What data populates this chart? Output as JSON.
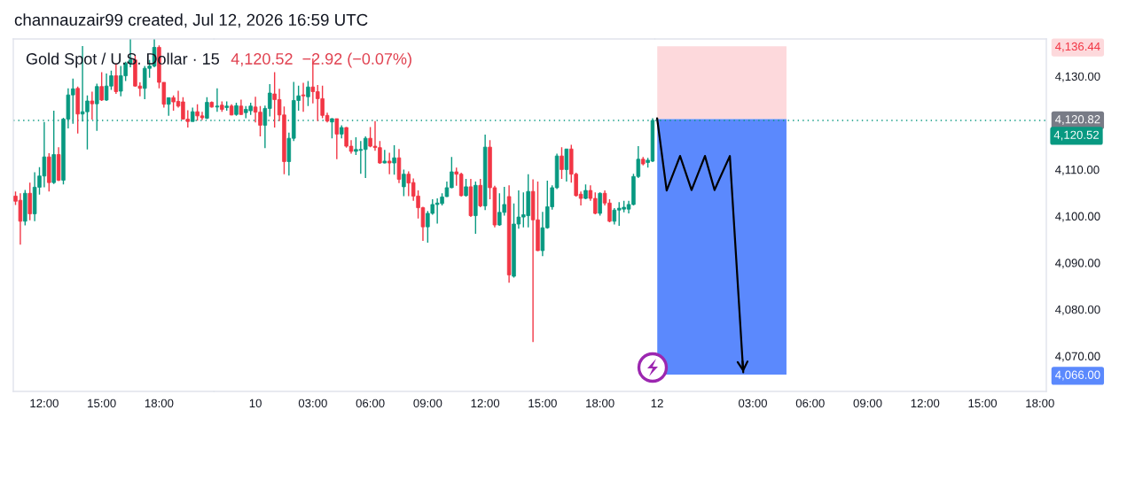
{
  "chart_data": [
    {
      "type": "candlestick",
      "title": "Gold Spot / U.S. Dollar · 15",
      "annotations": [
        "channauzair99 created, Jul 12, 2026 16:59 UTC"
      ],
      "x": [
        "2026-07-09T10:30",
        "2026-07-09T10:45",
        "2026-07-09T11:00",
        "2026-07-09T11:15",
        "2026-07-09T11:30",
        "2026-07-09T11:45",
        "2026-07-09T12:00",
        "2026-07-09T12:15",
        "2026-07-09T12:30",
        "2026-07-09T12:45",
        "2026-07-09T13:00",
        "2026-07-09T13:15",
        "2026-07-09T13:30",
        "2026-07-09T13:45",
        "2026-07-09T14:00",
        "2026-07-09T14:15",
        "2026-07-09T14:30",
        "2026-07-09T14:45",
        "2026-07-09T15:00",
        "2026-07-09T15:15",
        "2026-07-09T15:30",
        "2026-07-09T15:45",
        "2026-07-09T16:00",
        "2026-07-09T16:15",
        "2026-07-09T16:30",
        "2026-07-09T16:45",
        "2026-07-09T17:00",
        "2026-07-09T17:15",
        "2026-07-09T17:30",
        "2026-07-09T17:45",
        "2026-07-09T18:00",
        "2026-07-09T18:15",
        "2026-07-09T18:30",
        "2026-07-09T18:45",
        "2026-07-09T19:00",
        "2026-07-09T19:15",
        "2026-07-09T19:30",
        "2026-07-09T19:45",
        "2026-07-09T20:00",
        "2026-07-09T20:15",
        "2026-07-09T20:30",
        "2026-07-09T20:45"
      ],
      "ohlc": [
        [
          4104.3,
          4105.3,
          4102.4,
          4103.2
        ],
        [
          4103.4,
          4104.9,
          4093.9,
          4098.9
        ],
        [
          4098.9,
          4105.6,
          4098.0,
          4104.9
        ],
        [
          4104.9,
          4107.2,
          4099.1,
          4100.5
        ],
        [
          4100.5,
          4109.4,
          4098.9,
          4106.2
        ],
        [
          4106.2,
          4110.5,
          4104.6,
          4108.6
        ],
        [
          4108.6,
          4120.2,
          4106.2,
          4112.7
        ],
        [
          4112.7,
          4113.5,
          4105.3,
          4107.2
        ],
        [
          4107.2,
          4122.6,
          4106.9,
          4113.2
        ],
        [
          4113.2,
          4114.8,
          4107.5,
          4107.7
        ],
        [
          4107.7,
          4121.1,
          4106.8,
          4120.8
        ],
        [
          4120.8,
          4127.4,
          4118.8,
          4126.0
        ],
        [
          4126.0,
          4129.5,
          4119.8,
          4127.3
        ],
        [
          4127.4,
          4127.8,
          4117.7,
          4121.9
        ],
        [
          4121.9,
          4136.5,
          4120.3,
          4122.4
        ],
        [
          4122.4,
          4125.9,
          4114.3,
          4124.7
        ],
        [
          4124.7,
          4126.7,
          4120.7,
          4124.1
        ],
        [
          4124.1,
          4128.4,
          4118.3,
          4127.8
        ],
        [
          4127.8,
          4130.9,
          4124.7,
          4124.9
        ],
        [
          4124.9,
          4130.6,
          4124.7,
          4127.9
        ],
        [
          4127.9,
          4131.2,
          4127.1,
          4130.1
        ],
        [
          4130.1,
          4132.8,
          4126.2,
          4126.7
        ],
        [
          4126.8,
          4132.2,
          4125.7,
          4130.1
        ],
        [
          4130.1,
          4133.1,
          4129.0,
          4132.8
        ],
        [
          4132.8,
          4137.9,
          4131.9,
          4133.5
        ],
        [
          4133.5,
          4134.4,
          4127.8,
          4127.9
        ],
        [
          4127.9,
          4128.7,
          4125.7,
          4127.4
        ],
        [
          4127.4,
          4132.2,
          4125.1,
          4131.7
        ],
        [
          4131.7,
          4133.5,
          4129.7,
          4132.2
        ],
        [
          4132.2,
          4137.9,
          4131.9,
          4136.2
        ],
        [
          4136.2,
          4136.6,
          4127.4,
          4128.7
        ],
        [
          4128.7,
          4128.7,
          4123.3,
          4124.0
        ],
        [
          4124.0,
          4125.4,
          4121.5,
          4125.4
        ],
        [
          4125.4,
          4125.9,
          4122.6,
          4124.5
        ],
        [
          4124.6,
          4126.9,
          4123.3,
          4123.6
        ],
        [
          4124.5,
          4125.5,
          4120.7,
          4120.8
        ],
        [
          4120.8,
          4122.7,
          4119.0,
          4120.3
        ],
        [
          4120.3,
          4123.3,
          4120.3,
          4122.4
        ],
        [
          4122.4,
          4124.0,
          4120.5,
          4121.5
        ],
        [
          4121.5,
          4122.4,
          4120.6,
          4121.1
        ],
        [
          4121.0,
          4125.5,
          4120.8,
          4124.4
        ],
        [
          4124.4,
          4124.6,
          4123.3,
          4123.4
        ]
      ],
      "ref_lines": [
        {
          "axis": "y",
          "value": 4120.52,
          "color": "#089981",
          "line_style": "dotted"
        }
      ],
      "xlim": [
        "2026-07-09T10:23",
        "2026-07-09T20:52"
      ],
      "xticks": [
        {
          "value": "2026-07-09T12:00",
          "label": "12:00"
        },
        {
          "value": "2026-07-09T15:00",
          "label": "15:00"
        },
        {
          "value": "2026-07-09T18:00",
          "label": "18:00"
        }
      ],
      "ylim": [
        4062.4,
        4138.0
      ],
      "tick_labels": "x",
      "grid": false,
      "legend": false
    },
    {
      "type": "candlestick",
      "subtitle": "4,120.52  −2.92 (−0.07%)",
      "x": [
        "2026-07-09T22:00",
        "2026-07-09T22:15",
        "2026-07-09T22:30",
        "2026-07-09T22:45",
        "2026-07-09T23:00",
        "2026-07-09T23:15",
        "2026-07-09T23:30",
        "2026-07-09T23:45",
        "2026-07-10T00:00",
        "2026-07-10T00:15",
        "2026-07-10T00:30",
        "2026-07-10T00:45",
        "2026-07-10T01:00",
        "2026-07-10T01:15",
        "2026-07-10T01:30",
        "2026-07-10T01:45",
        "2026-07-10T02:00",
        "2026-07-10T02:15",
        "2026-07-10T02:30",
        "2026-07-10T02:45",
        "2026-07-10T03:00",
        "2026-07-10T03:15",
        "2026-07-10T03:30",
        "2026-07-10T03:45",
        "2026-07-10T04:00",
        "2026-07-10T04:15",
        "2026-07-10T04:30",
        "2026-07-10T04:45",
        "2026-07-10T05:00",
        "2026-07-10T05:15",
        "2026-07-10T05:30",
        "2026-07-10T05:45",
        "2026-07-10T06:00",
        "2026-07-10T06:15",
        "2026-07-10T06:30",
        "2026-07-10T06:45",
        "2026-07-10T07:00",
        "2026-07-10T07:15",
        "2026-07-10T07:30",
        "2026-07-10T07:45",
        "2026-07-10T08:00",
        "2026-07-10T08:15",
        "2026-07-10T08:30",
        "2026-07-10T08:45",
        "2026-07-10T09:00",
        "2026-07-10T09:15",
        "2026-07-10T09:30",
        "2026-07-10T09:45",
        "2026-07-10T10:00",
        "2026-07-10T10:15",
        "2026-07-10T10:30",
        "2026-07-10T10:45",
        "2026-07-10T11:00",
        "2026-07-10T11:15",
        "2026-07-10T11:30",
        "2026-07-10T11:45",
        "2026-07-10T12:00",
        "2026-07-10T12:15",
        "2026-07-10T12:30",
        "2026-07-10T12:45",
        "2026-07-10T13:00",
        "2026-07-10T13:15",
        "2026-07-10T13:30",
        "2026-07-10T13:45",
        "2026-07-10T14:00",
        "2026-07-10T14:15",
        "2026-07-10T14:30",
        "2026-07-10T14:45",
        "2026-07-10T15:00",
        "2026-07-10T15:15",
        "2026-07-10T15:30",
        "2026-07-10T15:45",
        "2026-07-10T16:00",
        "2026-07-10T16:15",
        "2026-07-10T16:30",
        "2026-07-10T16:45",
        "2026-07-10T17:00",
        "2026-07-10T17:15",
        "2026-07-10T17:30",
        "2026-07-10T17:45",
        "2026-07-10T18:00",
        "2026-07-10T18:15",
        "2026-07-10T18:30",
        "2026-07-10T18:45",
        "2026-07-10T19:00",
        "2026-07-10T19:15",
        "2026-07-10T19:30",
        "2026-07-10T19:45",
        "2026-07-10T20:00",
        "2026-07-10T20:15",
        "2026-07-10T20:30",
        "2026-07-10T20:45"
      ],
      "ohlc": [
        [
          4123.4,
          4127.4,
          4122.4,
          4123.6
        ],
        [
          4123.8,
          4124.6,
          4122.4,
          4122.9
        ],
        [
          4123.3,
          4124.6,
          4122.6,
          4123.6
        ],
        [
          4123.6,
          4124.0,
          4121.6,
          4121.7
        ],
        [
          4121.8,
          4124.3,
          4121.5,
          4123.7
        ],
        [
          4123.6,
          4125.0,
          4121.7,
          4121.8
        ],
        [
          4122.2,
          4123.6,
          4121.0,
          4122.9
        ],
        [
          4122.6,
          4124.3,
          4121.7,
          4123.6
        ],
        [
          4123.4,
          4125.6,
          4120.1,
          4122.3
        ],
        [
          4122.3,
          4123.6,
          4117.1,
          4119.5
        ],
        [
          4119.5,
          4123.7,
          4114.6,
          4123.1
        ],
        [
          4123.1,
          4128.3,
          4121.4,
          4126.4
        ],
        [
          4126.2,
          4130.9,
          4119.0,
          4125.0
        ],
        [
          4125.0,
          4127.3,
          4120.4,
          4121.7
        ],
        [
          4121.7,
          4123.5,
          4109.0,
          4111.7
        ],
        [
          4111.7,
          4117.9,
          4108.7,
          4116.7
        ],
        [
          4116.7,
          4128.8,
          4116.1,
          4124.8
        ],
        [
          4124.8,
          4128.0,
          4122.6,
          4125.8
        ],
        [
          4126.0,
          4128.6,
          4122.4,
          4125.8
        ],
        [
          4125.6,
          4129.0,
          4123.6,
          4127.7
        ],
        [
          4127.7,
          4133.8,
          4124.2,
          4126.7
        ],
        [
          4126.7,
          4128.1,
          4120.4,
          4125.2
        ],
        [
          4125.2,
          4128.0,
          4121.0,
          4121.6
        ],
        [
          4121.6,
          4122.2,
          4120.1,
          4120.4
        ],
        [
          4120.2,
          4121.0,
          4116.7,
          4120.9
        ],
        [
          4120.9,
          4120.9,
          4112.2,
          4117.6
        ],
        [
          4117.6,
          4119.5,
          4116.7,
          4119.0
        ],
        [
          4119.0,
          4119.1,
          4114.7,
          4115.0
        ],
        [
          4115.0,
          4116.3,
          4113.4,
          4113.9
        ],
        [
          4113.9,
          4116.9,
          4113.1,
          4114.3
        ],
        [
          4114.1,
          4116.1,
          4109.1,
          4114.3
        ],
        [
          4114.3,
          4117.1,
          4108.2,
          4116.7
        ],
        [
          4116.7,
          4119.1,
          4114.8,
          4115.0
        ],
        [
          4115.0,
          4120.4,
          4114.0,
          4114.7
        ],
        [
          4114.7,
          4116.1,
          4111.2,
          4111.4
        ],
        [
          4111.4,
          4114.2,
          4111.3,
          4111.8
        ],
        [
          4111.8,
          4113.6,
          4109.0,
          4111.4
        ],
        [
          4111.4,
          4115.2,
          4108.9,
          4112.5
        ],
        [
          4112.5,
          4114.4,
          4107.1,
          4107.9
        ],
        [
          4106.3,
          4110.0,
          4104.3,
          4109.0
        ],
        [
          4109.0,
          4109.6,
          4104.3,
          4107.1
        ],
        [
          4107.2,
          4108.1,
          4103.3,
          4104.3
        ],
        [
          4104.3,
          4105.5,
          4099.5,
          4101.8
        ],
        [
          4101.8,
          4102.0,
          4094.7,
          4097.7
        ],
        [
          4097.7,
          4101.1,
          4094.3,
          4100.6
        ],
        [
          4100.6,
          4103.6,
          4100.3,
          4102.5
        ],
        [
          4102.5,
          4103.8,
          4098.4,
          4102.8
        ],
        [
          4102.7,
          4104.9,
          4102.3,
          4104.1
        ],
        [
          4104.2,
          4107.4,
          4104.1,
          4106.1
        ],
        [
          4106.1,
          4112.7,
          4106.0,
          4109.5
        ],
        [
          4109.5,
          4110.4,
          4106.5,
          4109.0
        ],
        [
          4109.0,
          4109.3,
          4104.2,
          4104.4
        ],
        [
          4104.4,
          4108.0,
          4104.2,
          4106.3
        ],
        [
          4106.3,
          4108.0,
          4099.8,
          4100.1
        ],
        [
          4100.1,
          4107.4,
          4096.2,
          4106.6
        ],
        [
          4106.6,
          4108.0,
          4101.9,
          4102.2
        ],
        [
          4102.2,
          4117.5,
          4101.3,
          4114.8
        ],
        [
          4114.8,
          4116.3,
          4103.6,
          4106.1
        ],
        [
          4106.1,
          4106.5,
          4097.6,
          4098.1
        ],
        [
          4098.1,
          4104.9,
          4097.9,
          4100.8
        ],
        [
          4100.8,
          4106.3,
          4100.1,
          4102.5
        ],
        [
          4104.2,
          4106.6,
          4085.7,
          4087.4
        ],
        [
          4087.1,
          4102.7,
          4086.8,
          4098.3
        ],
        [
          4098.3,
          4105.5,
          4097.3,
          4099.8
        ],
        [
          4099.8,
          4105.1,
          4097.6,
          4100.3
        ],
        [
          4100.1,
          4109.0,
          4097.6,
          4105.3
        ],
        [
          4105.3,
          4107.9,
          4073.0,
          4099.2
        ],
        [
          4099.2,
          4107.4,
          4092.5,
          4092.6
        ],
        [
          4092.6,
          4100.9,
          4091.4,
          4097.5
        ],
        [
          4097.5,
          4107.6,
          4097.3,
          4102.0
        ],
        [
          4102.0,
          4106.6,
          4101.4,
          4106.1
        ],
        [
          4106.1,
          4113.4,
          4105.8,
          4112.9
        ],
        [
          4112.9,
          4114.8,
          4108.0,
          4110.0
        ],
        [
          4110.0,
          4114.4,
          4107.4,
          4114.4
        ],
        [
          4114.4,
          4115.3,
          4107.2,
          4109.0
        ],
        [
          4109.0,
          4109.3,
          4104.2,
          4104.4
        ],
        [
          4104.7,
          4105.3,
          4102.3,
          4103.8
        ],
        [
          4103.8,
          4106.8,
          4103.6,
          4105.5
        ],
        [
          4105.5,
          4106.6,
          4103.3,
          4103.8
        ],
        [
          4103.8,
          4105.1,
          4100.4,
          4100.6
        ],
        [
          4100.6,
          4105.1,
          4100.1,
          4104.9
        ],
        [
          4104.9,
          4105.5,
          4102.3,
          4102.8
        ],
        [
          4102.8,
          4103.6,
          4098.7,
          4098.9
        ],
        [
          4098.9,
          4101.7,
          4098.2,
          4101.3
        ],
        [
          4101.3,
          4103.0,
          4097.9,
          4101.7
        ],
        [
          4101.5,
          4103.3,
          4100.8,
          4101.9
        ],
        [
          4101.5,
          4103.3,
          4100.6,
          4102.5
        ],
        [
          4102.5,
          4109.1,
          4102.3,
          4108.5
        ],
        [
          4108.5,
          4115.0,
          4108.2,
          4112.2
        ],
        [
          4112.2,
          4112.7,
          4110.9,
          4111.2
        ],
        [
          4111.5,
          4112.5,
          4110.4,
          4112.0
        ],
        [
          4111.8,
          4121.0,
          4111.6,
          4120.52
        ]
      ],
      "ref_lines": [
        {
          "axis": "y",
          "value": 4120.52,
          "color": "#089981",
          "line_style": "dotted"
        }
      ],
      "xlim": [
        "2026-07-09T21:50",
        "2026-07-10T20:52"
      ],
      "xticks": [
        {
          "value": "2026-07-10T00:00",
          "label": "10"
        },
        {
          "value": "2026-07-10T03:00",
          "label": "03:00"
        },
        {
          "value": "2026-07-10T06:00",
          "label": "06:00"
        },
        {
          "value": "2026-07-10T09:00",
          "label": "09:00"
        },
        {
          "value": "2026-07-10T12:00",
          "label": "12:00"
        },
        {
          "value": "2026-07-10T15:00",
          "label": "15:00"
        },
        {
          "value": "2026-07-10T18:00",
          "label": "18:00"
        }
      ],
      "ylim": [
        4062.4,
        4138.0
      ],
      "tick_labels": "x",
      "grid": false,
      "legend": false
    },
    {
      "type": "line",
      "series": [
        {
          "type": "bar",
          "x": [
            "2026-07-13T01:23"
          ],
          "base": [
            4120.82
          ],
          "values": [
            15.62
          ],
          "color": "#fdd9dc"
        },
        {
          "type": "bar",
          "x": [
            "2026-07-13T01:23"
          ],
          "base": [
            4066.0
          ],
          "values": [
            54.82
          ],
          "color": "#5b89fd"
        },
        {
          "x": [
            "2026-07-12T22:00",
            "2026-07-12T22:30",
            "2026-07-12T23:12",
            "2026-07-12T23:48",
            "2026-07-13T00:30",
            "2026-07-13T01:00",
            "2026-07-13T01:48",
            "2026-07-13T02:30"
          ],
          "values": [
            4121.0,
            4105.5,
            4112.9,
            4105.6,
            4112.9,
            4105.6,
            4112.9,
            4066.5
          ],
          "color": "#000000"
        }
      ],
      "ref_lines": [
        {
          "axis": "y",
          "value": 4120.52,
          "label": "4,120.52",
          "color": "#089981",
          "line_style": "dotted"
        }
      ],
      "xlim": [
        "2026-07-12T21:53",
        "2026-07-13T18:20"
      ],
      "xticks": [
        {
          "value": "2026-07-12T22:00",
          "label": "12"
        },
        {
          "value": "2026-07-13T03:00",
          "label": "03:00"
        },
        {
          "value": "2026-07-13T06:00",
          "label": "06:00"
        },
        {
          "value": "2026-07-13T09:00",
          "label": "09:00"
        },
        {
          "value": "2026-07-13T12:00",
          "label": "12:00"
        },
        {
          "value": "2026-07-13T15:00",
          "label": "15:00"
        },
        {
          "value": "2026-07-13T18:00",
          "label": "18:00"
        }
      ],
      "ylim": [
        4062.4,
        4138.0
      ],
      "yticks": [
        {
          "value": 4066.0,
          "label": "4,066.00"
        },
        {
          "value": 4070,
          "label": "4,070.00"
        },
        {
          "value": 4080,
          "label": "4,080.00"
        },
        {
          "value": 4090,
          "label": "4,090.00"
        },
        {
          "value": 4100,
          "label": "4,100.00"
        },
        {
          "value": 4110,
          "label": "4,110.00"
        },
        {
          "value": 4120.82,
          "label": "4,120.82"
        },
        {
          "value": 4130,
          "label": "4,130.00"
        },
        {
          "value": 4136.44,
          "label": "4,136.44"
        }
      ],
      "grid": false,
      "legend": false
    }
  ]
}
